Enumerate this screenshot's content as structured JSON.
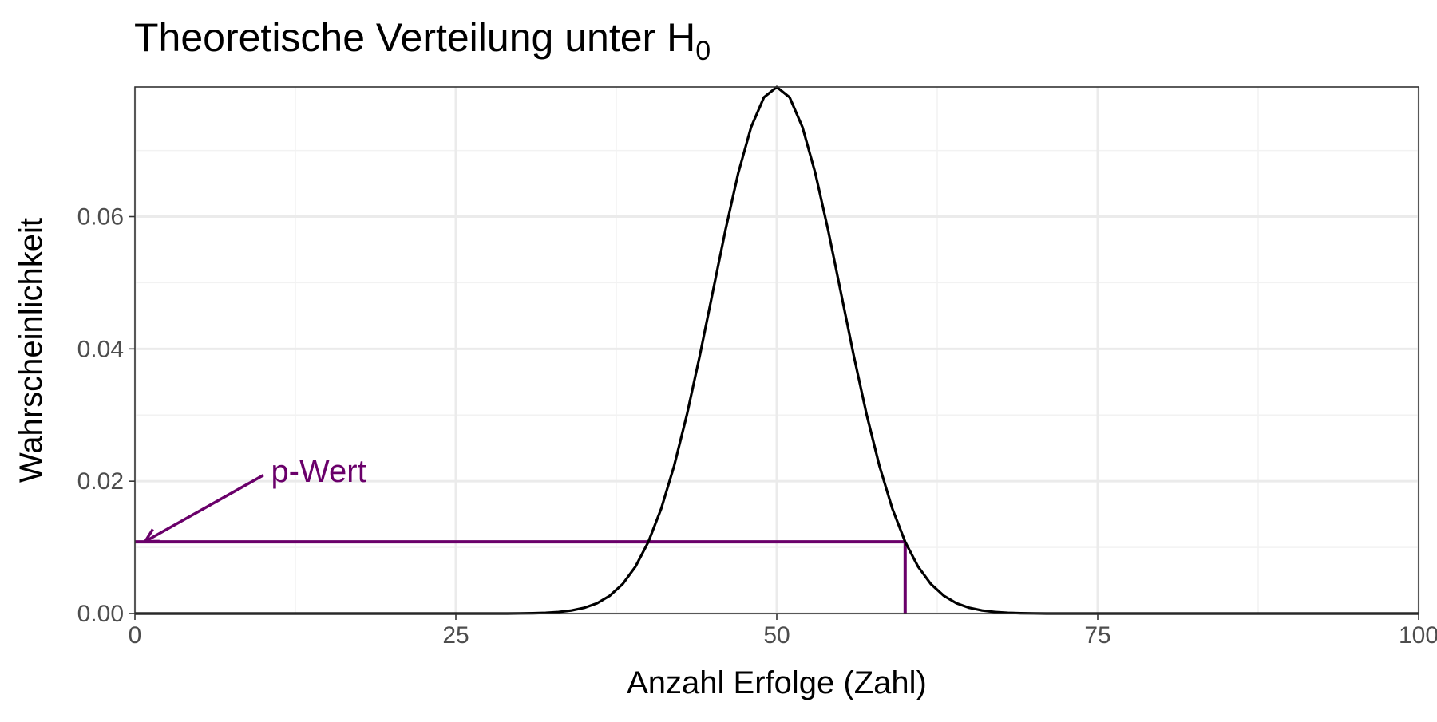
{
  "chart_data": {
    "type": "line",
    "title": "Theoretische Verteilung unter H",
    "title_subscript": "0",
    "xlabel": "Anzahl Erfolge (Zahl)",
    "ylabel": "Wahrscheinlichkeit",
    "xlim": [
      0,
      100
    ],
    "ylim": [
      0,
      0.0796
    ],
    "x_ticks": [
      0,
      25,
      50,
      75,
      100
    ],
    "x_tick_labels": [
      "0",
      "25",
      "50",
      "75",
      "100"
    ],
    "y_ticks": [
      0.0,
      0.02,
      0.04,
      0.06
    ],
    "y_tick_labels": [
      "0.00",
      "0.02",
      "0.04",
      "0.06"
    ],
    "x_minor_grid": [
      12.5,
      37.5,
      62.5,
      87.5
    ],
    "y_minor_grid": [
      0.01,
      0.03,
      0.05,
      0.07
    ],
    "grid": true,
    "series": [
      {
        "color": "#000000",
        "x": [
          0,
          1,
          2,
          3,
          4,
          5,
          6,
          7,
          8,
          9,
          10,
          11,
          12,
          13,
          14,
          15,
          16,
          17,
          18,
          19,
          20,
          21,
          22,
          23,
          24,
          25,
          26,
          27,
          28,
          29,
          30,
          31,
          32,
          33,
          34,
          35,
          36,
          37,
          38,
          39,
          40,
          41,
          42,
          43,
          44,
          45,
          46,
          47,
          48,
          49,
          50,
          51,
          52,
          53,
          54,
          55,
          56,
          57,
          58,
          59,
          60,
          61,
          62,
          63,
          64,
          65,
          66,
          67,
          68,
          69,
          70,
          71,
          72,
          73,
          74,
          75,
          76,
          77,
          78,
          79,
          80,
          81,
          82,
          83,
          84,
          85,
          86,
          87,
          88,
          89,
          90,
          91,
          92,
          93,
          94,
          95,
          96,
          97,
          98,
          99,
          100
        ],
        "y": [
          0,
          0,
          0,
          0,
          0,
          0,
          0,
          0,
          0,
          0,
          0,
          0,
          0,
          0,
          0,
          0,
          0,
          0,
          0,
          0,
          0,
          0,
          0,
          0,
          0,
          0,
          0,
          0,
          0,
          0,
          2e-05,
          5e-05,
          0.00011,
          0.00023,
          0.00046,
          0.00086,
          0.00156,
          0.0027,
          0.00447,
          0.00711,
          0.01084,
          0.01587,
          0.02229,
          0.03007,
          0.03895,
          0.04847,
          0.05796,
          0.06659,
          0.07353,
          0.07803,
          0.07959,
          0.07803,
          0.07353,
          0.06659,
          0.05796,
          0.04847,
          0.03895,
          0.03007,
          0.02229,
          0.01587,
          0.01084,
          0.00711,
          0.00447,
          0.0027,
          0.00156,
          0.00086,
          0.00046,
          0.00023,
          0.00011,
          5e-05,
          2e-05,
          0,
          0,
          0,
          0,
          0,
          0,
          0,
          0,
          0,
          0,
          0,
          0,
          0,
          0,
          0,
          0,
          0,
          0,
          0,
          0,
          0,
          0,
          0,
          0,
          0,
          0,
          0,
          0,
          0,
          0
        ]
      }
    ],
    "annotations": [
      {
        "type": "horizontal-segment",
        "x_start": 0,
        "x_end": 60,
        "y": 0.01084,
        "color": "#6a006a"
      },
      {
        "type": "vertical-segment",
        "x": 60,
        "y_start": 0,
        "y_end": 0.01084,
        "color": "#6a006a"
      },
      {
        "type": "arrow",
        "x_from": 10,
        "y_from": 0.0209,
        "x_to": 0.8,
        "y_to": 0.0109,
        "color": "#6a006a"
      },
      {
        "type": "text",
        "text": "p-Wert",
        "x": 10.6,
        "y": 0.0216,
        "color": "#6a006a"
      }
    ],
    "colors": {
      "grid_major": "#ebebeb",
      "grid_minor": "#f2f2f2",
      "panel_border": "#333333",
      "annotation": "#6a006a"
    }
  }
}
